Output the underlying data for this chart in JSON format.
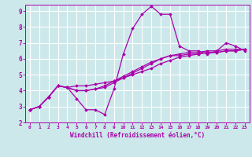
{
  "title": "",
  "xlabel": "Windchill (Refroidissement éolien,°C)",
  "ylabel": "",
  "xlim": [
    -0.5,
    23.5
  ],
  "ylim": [
    2,
    9.4
  ],
  "yticks": [
    2,
    3,
    4,
    5,
    6,
    7,
    8,
    9
  ],
  "xticks": [
    0,
    1,
    2,
    3,
    4,
    5,
    6,
    7,
    8,
    9,
    10,
    11,
    12,
    13,
    14,
    15,
    16,
    17,
    18,
    19,
    20,
    21,
    22,
    23
  ],
  "bg_color": "#cce8ea",
  "grid_color": "#ffffff",
  "line_color": "#aa00aa",
  "line_width": 0.9,
  "marker": "D",
  "marker_size": 1.8,
  "series": [
    [
      2.8,
      3.0,
      3.6,
      4.3,
      4.2,
      3.5,
      2.8,
      2.8,
      2.5,
      4.1,
      6.3,
      7.9,
      8.8,
      9.3,
      8.8,
      8.8,
      6.8,
      6.5,
      6.5,
      6.3,
      6.5,
      7.0,
      6.8,
      6.5
    ],
    [
      2.8,
      3.0,
      3.6,
      4.3,
      4.2,
      4.3,
      4.3,
      4.4,
      4.5,
      4.6,
      4.8,
      5.0,
      5.2,
      5.4,
      5.7,
      5.9,
      6.1,
      6.2,
      6.3,
      6.4,
      6.4,
      6.5,
      6.5,
      6.6
    ],
    [
      2.8,
      3.0,
      3.6,
      4.3,
      4.2,
      4.0,
      4.0,
      4.1,
      4.2,
      4.5,
      4.8,
      5.1,
      5.4,
      5.7,
      6.0,
      6.2,
      6.2,
      6.3,
      6.3,
      6.4,
      6.4,
      6.5,
      6.5,
      6.6
    ],
    [
      2.8,
      3.0,
      3.6,
      4.3,
      4.2,
      4.0,
      4.0,
      4.1,
      4.3,
      4.6,
      4.9,
      5.2,
      5.5,
      5.8,
      6.0,
      6.2,
      6.3,
      6.4,
      6.4,
      6.5,
      6.5,
      6.6,
      6.6,
      6.6
    ]
  ]
}
